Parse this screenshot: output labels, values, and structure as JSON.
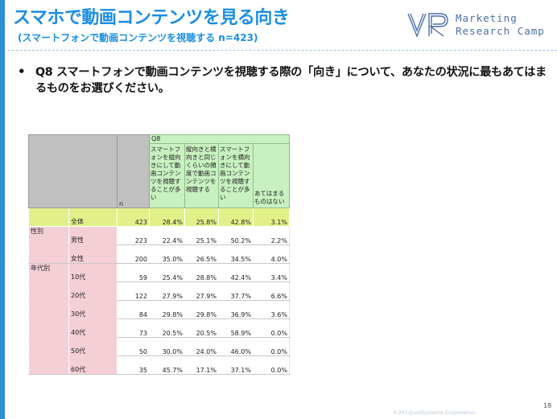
{
  "slide": {
    "title": "スマホで動画コンテンツを見る向き",
    "subtitle": "(スマートフォンで動画コンテンツを視聴する n=423)",
    "logo_lines": [
      "Marketing",
      "Research Camp"
    ],
    "bullet": "•",
    "question": "Q8 スマートフォンで動画コンテンツを視聴する際の「向き」について、あなたの状況に最もあてはまるものをお選びください。",
    "copyright": "©2012JustSystems Corporation",
    "page_number": "18"
  },
  "table": {
    "q_label": "Q8",
    "n_label": "n",
    "columns": [
      "スマートフォンを縦向きにして動画コンテンツを視聴することが多い",
      "縦向きと横向きと同じくらいの頻度で動画コンテンツを視聴する",
      "スマートフォンを横向きにして動画コンテンツを視聴することが多い",
      "あてはまるものはない"
    ],
    "categories": {
      "gender": "性別",
      "age": "年代別"
    },
    "rows": [
      {
        "label": "全体",
        "n": "423",
        "v": [
          "28.4%",
          "25.8%",
          "42.8%",
          "3.1%"
        ]
      },
      {
        "label": "男性",
        "n": "223",
        "v": [
          "22.4%",
          "25.1%",
          "50.2%",
          "2.2%"
        ]
      },
      {
        "label": "女性",
        "n": "200",
        "v": [
          "35.0%",
          "26.5%",
          "34.5%",
          "4.0%"
        ]
      },
      {
        "label": "10代",
        "n": "59",
        "v": [
          "25.4%",
          "28.8%",
          "42.4%",
          "3.4%"
        ]
      },
      {
        "label": "20代",
        "n": "122",
        "v": [
          "27.9%",
          "27.9%",
          "37.7%",
          "6.6%"
        ]
      },
      {
        "label": "30代",
        "n": "84",
        "v": [
          "29.8%",
          "29.8%",
          "36.9%",
          "3.6%"
        ]
      },
      {
        "label": "40代",
        "n": "73",
        "v": [
          "20.5%",
          "20.5%",
          "58.9%",
          "0.0%"
        ]
      },
      {
        "label": "50代",
        "n": "50",
        "v": [
          "30.0%",
          "24.0%",
          "46.0%",
          "0.0%"
        ]
      },
      {
        "label": "60代",
        "n": "35",
        "v": [
          "45.7%",
          "17.1%",
          "37.1%",
          "0.0%"
        ]
      }
    ]
  }
}
